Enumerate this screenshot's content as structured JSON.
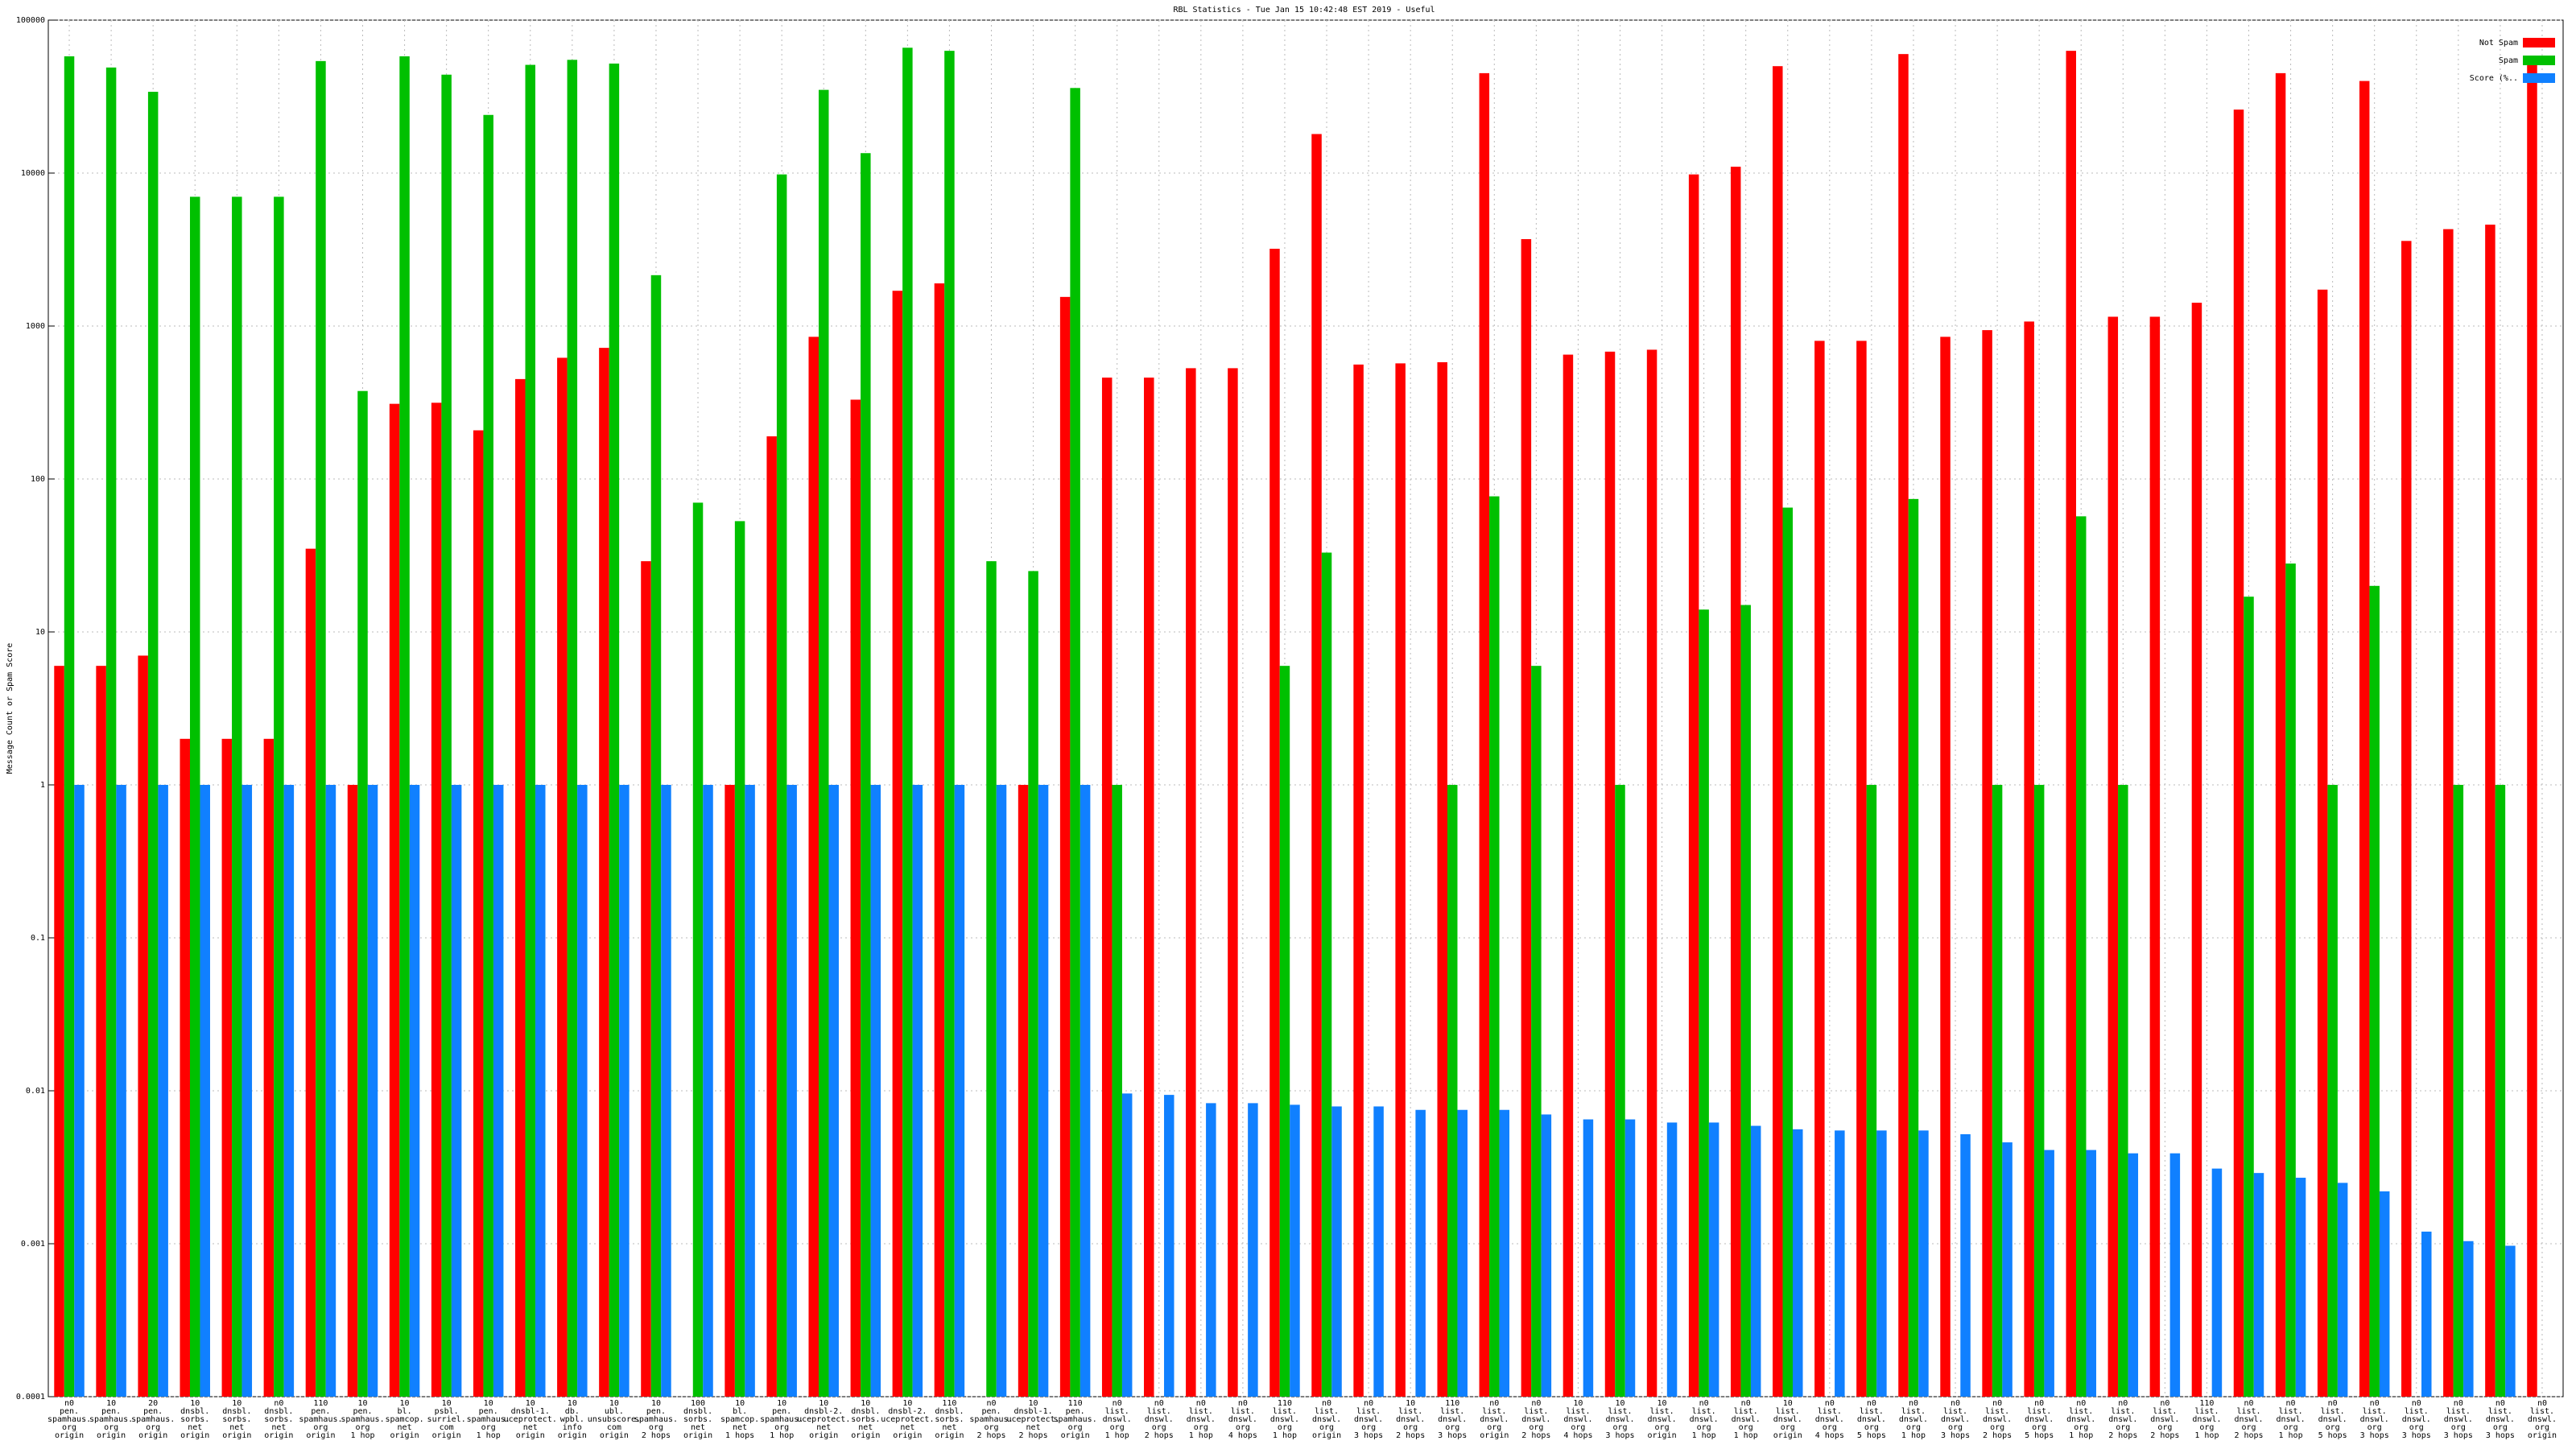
{
  "chart_data": {
    "type": "bar",
    "title": "RBL Statistics - Tue Jan 15 10:42:48 EST 2019 - Useful",
    "y_label": "Message Count or Spam Score",
    "log_scale": true,
    "grid": true,
    "legend": "top-right",
    "ylim": [
      0.0001,
      100000
    ],
    "yticks": [
      0.0001,
      0.001,
      0.01,
      0.1,
      1,
      10,
      100,
      1000,
      10000,
      100000
    ],
    "categories": [
      [
        "n0",
        "pen.",
        "spamhaus.",
        "org",
        "origin"
      ],
      [
        "10",
        "pen.",
        "spamhaus.",
        "org",
        "origin"
      ],
      [
        "20",
        "pen.",
        "spamhaus.",
        "org",
        "origin"
      ],
      [
        "10",
        "dnsbl.",
        "sorbs.",
        "net",
        "origin"
      ],
      [
        "10",
        "dnsbl.",
        "sorbs.",
        "net",
        "origin"
      ],
      [
        "n0",
        "dnsbl.",
        "sorbs.",
        "net",
        "origin"
      ],
      [
        "110",
        "pen.",
        "spamhaus.",
        "org",
        "origin"
      ],
      [
        "10",
        "pen.",
        "spamhaus.",
        "org",
        "1 hop"
      ],
      [
        "10",
        "bl.",
        "spamcop.",
        "net",
        "origin"
      ],
      [
        "10",
        "psbl.",
        "surriel.",
        "com",
        "origin"
      ],
      [
        "10",
        "pen.",
        "spamhaus.",
        "org",
        "1 hop"
      ],
      [
        "10",
        "dnsbl-1.",
        "uceprotect.",
        "net",
        "origin"
      ],
      [
        "10",
        "db.",
        "wpbl.",
        "info",
        "origin"
      ],
      [
        "10",
        "ubl.",
        "unsubscore.",
        "com",
        "origin"
      ],
      [
        "10",
        "pen.",
        "spamhaus.",
        "org",
        "2 hops"
      ],
      [
        "100",
        "dnsbl.",
        "sorbs.",
        "net",
        "origin"
      ],
      [
        "10",
        "bl.",
        "spamcop.",
        "net",
        "1 hops"
      ],
      [
        "10",
        "pen.",
        "spamhaus.",
        "org",
        "1 hop"
      ],
      [
        "10",
        "dnsbl-2.",
        "uceprotect.",
        "net",
        "origin"
      ],
      [
        "10",
        "dnsbl.",
        "sorbs.",
        "net",
        "origin"
      ],
      [
        "10",
        "dnsbl-2.",
        "uceprotect.",
        "net",
        "origin"
      ],
      [
        "110",
        "dnsbl.",
        "sorbs.",
        "net",
        "origin"
      ],
      [
        "n0",
        "pen.",
        "spamhaus.",
        "org",
        "2 hops"
      ],
      [
        "10",
        "dnsbl-1.",
        "uceprotect.",
        "net",
        "2 hops"
      ],
      [
        "110",
        "pen.",
        "spamhaus.",
        "org",
        "origin"
      ],
      [
        "n0",
        "list.",
        "dnswl.",
        "org",
        "1 hop"
      ],
      [
        "n0",
        "list.",
        "dnswl.",
        "org",
        "2 hops"
      ],
      [
        "n0",
        "list.",
        "dnswl.",
        "org",
        "1 hop"
      ],
      [
        "n0",
        "list.",
        "dnswl.",
        "org",
        "4 hops"
      ],
      [
        "110",
        "list.",
        "dnswl.",
        "org",
        "1 hop"
      ],
      [
        "n0",
        "list.",
        "dnswl.",
        "org",
        "origin"
      ],
      [
        "n0",
        "list.",
        "dnswl.",
        "org",
        "3 hops"
      ],
      [
        "10",
        "list.",
        "dnswl.",
        "org",
        "2 hops"
      ],
      [
        "110",
        "list.",
        "dnswl.",
        "org",
        "3 hops"
      ],
      [
        "n0",
        "list.",
        "dnswl.",
        "org",
        "origin"
      ],
      [
        "n0",
        "list.",
        "dnswl.",
        "org",
        "2 hops"
      ],
      [
        "10",
        "list.",
        "dnswl.",
        "org",
        "4 hops"
      ],
      [
        "10",
        "list.",
        "dnswl.",
        "org",
        "3 hops"
      ],
      [
        "10",
        "list.",
        "dnswl.",
        "org",
        "origin"
      ],
      [
        "n0",
        "list.",
        "dnswl.",
        "org",
        "1 hop"
      ],
      [
        "n0",
        "list.",
        "dnswl.",
        "org",
        "1 hop"
      ],
      [
        "10",
        "list.",
        "dnswl.",
        "org",
        "origin"
      ],
      [
        "n0",
        "list.",
        "dnswl.",
        "org",
        "4 hops"
      ],
      [
        "n0",
        "list.",
        "dnswl.",
        "org",
        "5 hops"
      ],
      [
        "n0",
        "list.",
        "dnswl.",
        "org",
        "1 hop"
      ],
      [
        "n0",
        "list.",
        "dnswl.",
        "org",
        "3 hops"
      ],
      [
        "n0",
        "list.",
        "dnswl.",
        "org",
        "2 hops"
      ],
      [
        "n0",
        "list.",
        "dnswl.",
        "org",
        "5 hops"
      ],
      [
        "n0",
        "list.",
        "dnswl.",
        "org",
        "1 hop"
      ],
      [
        "n0",
        "list.",
        "dnswl.",
        "org",
        "2 hops"
      ],
      [
        "n0",
        "list.",
        "dnswl.",
        "org",
        "2 hops"
      ],
      [
        "110",
        "list.",
        "dnswl.",
        "org",
        "1 hop"
      ],
      [
        "n0",
        "list.",
        "dnswl.",
        "org",
        "2 hops"
      ],
      [
        "n0",
        "list.",
        "dnswl.",
        "org",
        "1 hop"
      ],
      [
        "n0",
        "list.",
        "dnswl.",
        "org",
        "5 hops"
      ],
      [
        "n0",
        "list.",
        "dnswl.",
        "org",
        "3 hops"
      ],
      [
        "n0",
        "list.",
        "dnswl.",
        "org",
        "3 hops"
      ],
      [
        "n0",
        "list.",
        "dnswl.",
        "org",
        "3 hops"
      ],
      [
        "n0",
        "list.",
        "dnswl.",
        "org",
        "3 hops"
      ],
      [
        "n0",
        "list.",
        "dnswl.",
        "org",
        "origin"
      ]
    ],
    "series": [
      {
        "name": "Not Spam",
        "color": "#ff0000",
        "values": [
          6,
          6,
          7,
          2,
          2,
          2,
          35,
          1,
          310,
          315,
          208,
          450,
          620,
          720,
          29,
          null,
          1,
          190,
          850,
          330,
          1700,
          1900,
          null,
          1,
          1550,
          460,
          460,
          530,
          530,
          3200,
          18000,
          560,
          570,
          580,
          45000,
          3700,
          650,
          680,
          700,
          9800,
          11000,
          50000,
          800,
          800,
          60000,
          850,
          940,
          1070,
          63000,
          1150,
          1150,
          1420,
          26000,
          45000,
          1730,
          40000,
          3600,
          4300,
          4600,
          55000
        ]
      },
      {
        "name": "Spam",
        "color": "#00c000",
        "values": [
          58000,
          49000,
          34000,
          7000,
          7000,
          7000,
          54000,
          376,
          58000,
          44000,
          24000,
          51000,
          55000,
          52000,
          2150,
          70,
          53,
          9800,
          35000,
          13500,
          66000,
          63000,
          29,
          25,
          36000,
          1,
          null,
          null,
          null,
          6,
          33,
          null,
          null,
          1,
          77,
          6,
          null,
          1,
          null,
          14,
          15,
          65,
          null,
          1,
          74,
          null,
          1,
          1,
          57,
          1,
          null,
          null,
          17,
          28,
          1,
          20,
          null,
          1,
          1,
          null
        ]
      },
      {
        "name": "Score (%..",
        "color": "#1080ff",
        "values": [
          1,
          1,
          1,
          1,
          1,
          1,
          1,
          1,
          1,
          1,
          1,
          1,
          1,
          1,
          1,
          1,
          1,
          1,
          1,
          1,
          1,
          1,
          1,
          1,
          1,
          0.0096,
          0.0094,
          0.0083,
          0.0083,
          0.0081,
          0.0079,
          0.0079,
          0.0075,
          0.0075,
          0.0075,
          0.007,
          0.0065,
          0.0065,
          0.0062,
          0.0062,
          0.0059,
          0.0056,
          0.0055,
          0.0055,
          0.0055,
          0.0052,
          0.0046,
          0.0041,
          0.0041,
          0.0039,
          0.0039,
          0.0031,
          0.0029,
          0.0027,
          0.0025,
          0.0022,
          0.0012,
          0.00104,
          0.00097,
          null
        ]
      }
    ]
  }
}
